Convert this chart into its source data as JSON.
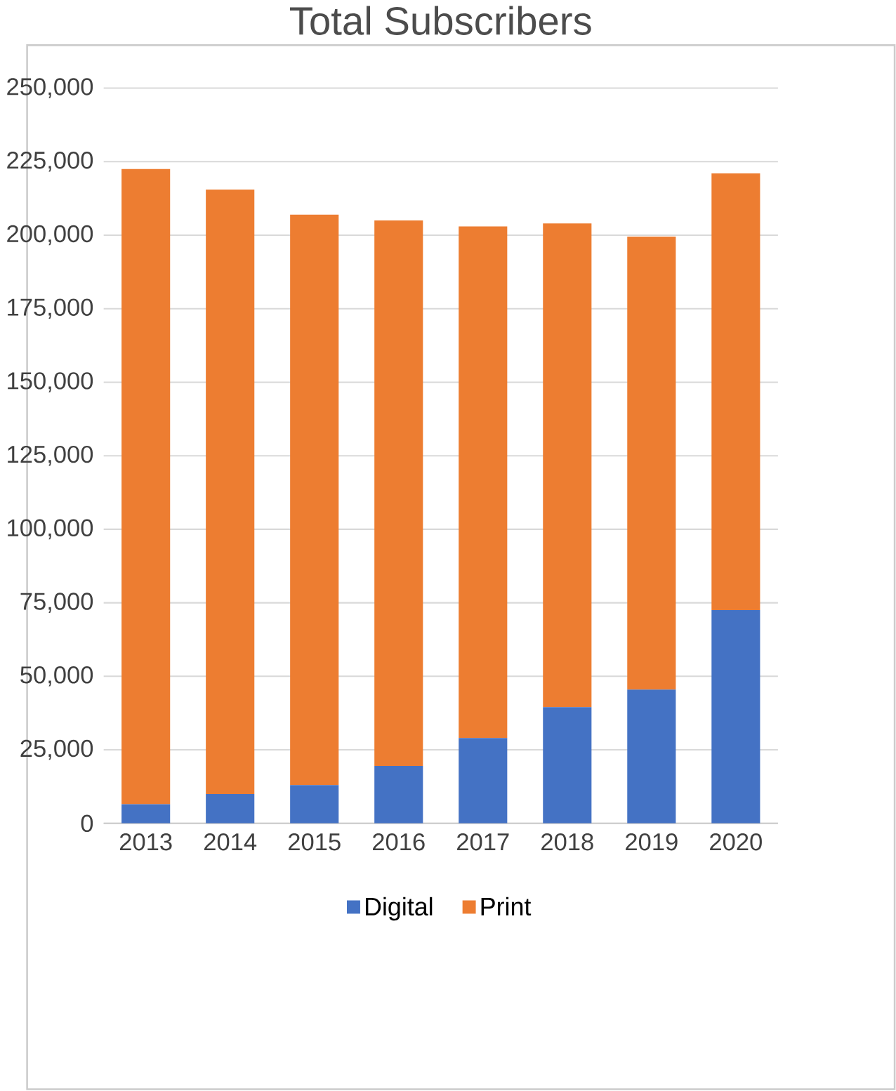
{
  "chart_data": {
    "type": "bar",
    "title": "Total Subscribers",
    "stacked": true,
    "categories": [
      "2013",
      "2014",
      "2015",
      "2016",
      "2017",
      "2018",
      "2019",
      "2020"
    ],
    "series": [
      {
        "name": "Digital",
        "color": "#4472c4",
        "values": [
          6500,
          10000,
          13000,
          19500,
          29000,
          39500,
          45500,
          72500
        ]
      },
      {
        "name": "Print",
        "color": "#ed7d31",
        "values": [
          216000,
          205500,
          194000,
          185500,
          174000,
          164500,
          154000,
          148500
        ]
      }
    ],
    "ylim": [
      0,
      250000
    ],
    "yticks": [
      {
        "value": 0,
        "label": "0"
      },
      {
        "value": 25000,
        "label": "25,000"
      },
      {
        "value": 50000,
        "label": "50,000"
      },
      {
        "value": 75000,
        "label": "75,000"
      },
      {
        "value": 100000,
        "label": "100,000"
      },
      {
        "value": 125000,
        "label": "125,000"
      },
      {
        "value": 150000,
        "label": "150,000"
      },
      {
        "value": 175000,
        "label": "175,000"
      },
      {
        "value": 200000,
        "label": "200,000"
      },
      {
        "value": 225000,
        "label": "225,000"
      },
      {
        "value": 250000,
        "label": "250,000"
      }
    ],
    "grid": "y",
    "legend": "bottom"
  }
}
